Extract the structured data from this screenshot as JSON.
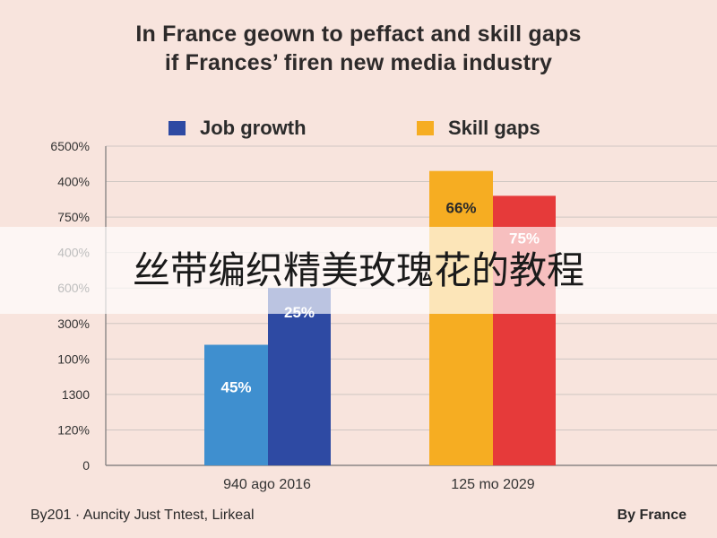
{
  "title_line1": "In France geown to peffact and skill gaps",
  "title_line2": "if Frances’ firen new media industry",
  "overlay_text": "丝带编织精美玫瑰花的教程",
  "footer_left": "By201 · Auncity Just Tntest, Lirkeal",
  "footer_right": "By France",
  "colors": {
    "background": "#f8e4dd",
    "job_growth": "#2e4aa3",
    "job_growth_light": "#3f8fcf",
    "skill_gaps": "#f6ad22",
    "skill_gaps_red": "#e63a3a"
  },
  "chart_data": {
    "type": "bar",
    "legend_position": "top",
    "grid": true,
    "y_tick_labels": [
      "0",
      "120%",
      "1300",
      "100%",
      "300%",
      "600%",
      "400%",
      "750%",
      "400%",
      "6500%"
    ],
    "categories": [
      "940 ago 2016",
      "125 mo 2029"
    ],
    "series": [
      {
        "name": "",
        "color": "#3f8fcf",
        "values": [
          3.4,
          null
        ],
        "label": "45%"
      },
      {
        "name": "Job growth",
        "color": "#2e4aa3",
        "values": [
          5.0,
          null
        ],
        "label": "25%"
      },
      {
        "name": "Skill gaps",
        "color": "#f6ad22",
        "values": [
          null,
          8.3
        ],
        "label": "66%"
      },
      {
        "name": "",
        "color": "#e63a3a",
        "values": [
          null,
          7.6
        ],
        "label": "75%"
      }
    ]
  }
}
